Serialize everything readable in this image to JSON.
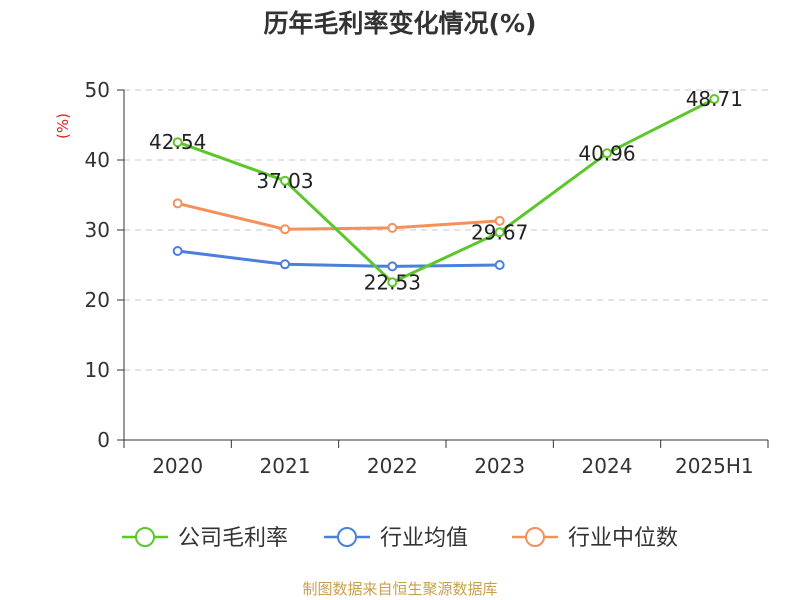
{
  "title": "历年毛利率变化情况(%)",
  "source": "制图数据来自恒生聚源数据库",
  "colors": {
    "gross_margin": "#5cc72a",
    "industry_avg": "#4a7fdc",
    "industry_median": "#f4905a",
    "grid": "#c8c8c8",
    "axis": "#333333",
    "unit": "#e02020"
  },
  "chart_data": {
    "type": "line",
    "ylabel": "(%)",
    "ylim": [
      0,
      50
    ],
    "yticks": [
      "0",
      "10",
      "20",
      "30",
      "40",
      "50"
    ],
    "categories": [
      "2020",
      "2021",
      "2022",
      "2023",
      "2024",
      "2025H1"
    ],
    "grid": "horizontal-dashed",
    "legend_position": "bottom",
    "series": [
      {
        "name": "公司毛利率",
        "color": "#5cc72a",
        "values": [
          42.54,
          37.03,
          22.53,
          29.67,
          40.96,
          48.71
        ],
        "labels": [
          "42.54",
          "37.03",
          "22.53",
          "29.67",
          "40.96",
          "48.71"
        ]
      },
      {
        "name": "行业均值",
        "color": "#4a7fdc",
        "values": [
          27.0,
          25.1,
          24.8,
          25.0,
          null,
          null
        ]
      },
      {
        "name": "行业中位数",
        "color": "#f4905a",
        "values": [
          33.8,
          30.1,
          30.3,
          31.3,
          null,
          null
        ]
      }
    ]
  }
}
